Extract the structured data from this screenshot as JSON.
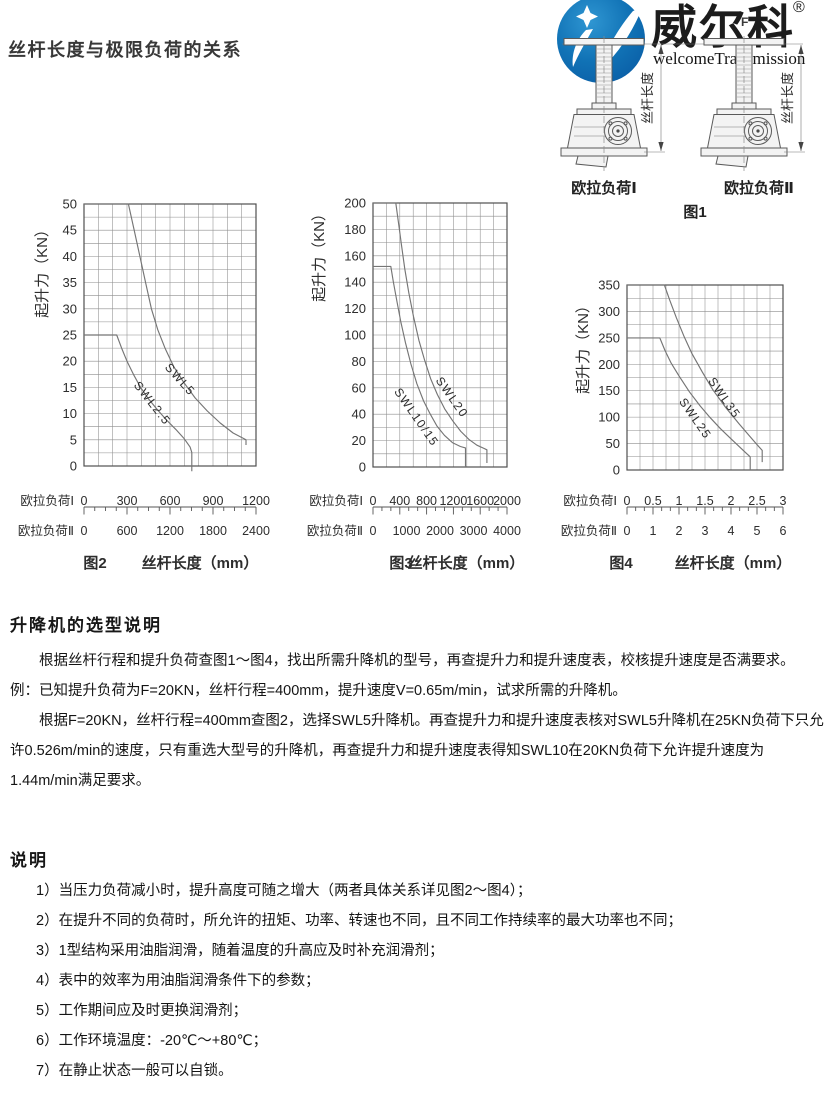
{
  "header": {
    "title": "丝杆长度与极限负荷的关系"
  },
  "logo": {
    "brand": "威尔科",
    "reg": "®",
    "small_f": "F",
    "subtitle": "welcomeTransmission",
    "blue": "#0d6cb5"
  },
  "fig1": {
    "caption": "图1",
    "dim_label": "丝杆长度",
    "label_left": "欧拉负荷Ⅰ",
    "label_right": "欧拉负荷Ⅱ"
  },
  "chart_data": [
    {
      "id": "fig2",
      "type": "line",
      "caption": "图2",
      "xlabel": "丝杆长度（mm）",
      "ylabel": "起升力（KN）",
      "ylim": [
        0,
        50
      ],
      "y_ticks": [
        "0",
        "5",
        "10",
        "15",
        "20",
        "25",
        "30",
        "35",
        "40",
        "45",
        "50"
      ],
      "xlim": [
        0,
        1200
      ],
      "grid": {
        "rows": 20,
        "cols": 12
      },
      "ruler": {
        "divs": 16,
        "major_every": 4
      },
      "x_axes": [
        {
          "label": "欧拉负荷Ⅰ",
          "ticks": [
            "0",
            "300",
            "600",
            "900",
            "1200"
          ]
        },
        {
          "label": "欧拉负荷Ⅱ",
          "ticks": [
            "0",
            "600",
            "1200",
            "1800",
            "2400"
          ]
        }
      ],
      "series": [
        {
          "name": "SWL5",
          "label_at": [
            650,
            16
          ],
          "label_angle": 48,
          "points": [
            [
              0,
              50
            ],
            [
              310,
              50
            ],
            [
              350,
              45
            ],
            [
              390,
              40
            ],
            [
              430,
              35
            ],
            [
              470,
              30
            ],
            [
              515,
              26
            ],
            [
              565,
              22.5
            ],
            [
              625,
              19
            ],
            [
              695,
              16
            ],
            [
              775,
              13
            ],
            [
              860,
              10.5
            ],
            [
              950,
              8.2
            ],
            [
              1040,
              6.3
            ],
            [
              1130,
              5
            ],
            [
              1130,
              4
            ]
          ]
        },
        {
          "name": "SWL2.5",
          "label_at": [
            455,
            11.5
          ],
          "label_angle": 52,
          "points": [
            [
              0,
              25
            ],
            [
              228,
              25
            ],
            [
              262,
              22.5
            ],
            [
              300,
              20
            ],
            [
              345,
              17.5
            ],
            [
              395,
              15
            ],
            [
              450,
              12.8
            ],
            [
              510,
              10.8
            ],
            [
              575,
              8.8
            ],
            [
              640,
              7
            ],
            [
              700,
              5.2
            ],
            [
              740,
              3.6
            ],
            [
              752,
              2.6
            ],
            [
              752,
              -1
            ]
          ]
        }
      ]
    },
    {
      "id": "fig3",
      "type": "line",
      "caption": "图3",
      "xlabel": "丝杆长度（mm）",
      "ylabel": "起升力（KN）",
      "ylim": [
        0,
        200
      ],
      "y_ticks": [
        "0",
        "20",
        "40",
        "60",
        "80",
        "100",
        "120",
        "140",
        "160",
        "180",
        "200"
      ],
      "xlim": [
        0,
        2000
      ],
      "grid": {
        "rows": 20,
        "cols": 10
      },
      "ruler": {
        "divs": 15,
        "major_every": 3
      },
      "x_axes": [
        {
          "label": "欧拉负荷Ⅰ",
          "ticks": [
            "0",
            "400",
            "800",
            "1200",
            "1600",
            "2000"
          ]
        },
        {
          "label": "欧拉负荷Ⅱ",
          "ticks": [
            "0",
            "1000",
            "2000",
            "3000",
            "4000"
          ]
        }
      ],
      "series": [
        {
          "name": "SWL20",
          "label_at": [
            1130,
            51
          ],
          "label_angle": 55,
          "points": [
            [
              0,
              200
            ],
            [
              340,
              200
            ],
            [
              380,
              185
            ],
            [
              425,
              168
            ],
            [
              475,
              150
            ],
            [
              535,
              132
            ],
            [
              605,
              114
            ],
            [
              685,
              96
            ],
            [
              770,
              81
            ],
            [
              860,
              67
            ],
            [
              960,
              55
            ],
            [
              1070,
              44
            ],
            [
              1190,
              35
            ],
            [
              1310,
              27
            ],
            [
              1430,
              21
            ],
            [
              1550,
              16.5
            ],
            [
              1660,
              14
            ],
            [
              1700,
              13
            ],
            [
              1700,
              3
            ]
          ]
        },
        {
          "name": "SWL10/15",
          "label_at": [
            600,
            36
          ],
          "label_angle": 55,
          "points": [
            [
              0,
              152
            ],
            [
              265,
              152
            ],
            [
              305,
              140
            ],
            [
              355,
              126
            ],
            [
              415,
              110
            ],
            [
              485,
              94
            ],
            [
              565,
              78
            ],
            [
              655,
              63
            ],
            [
              755,
              50
            ],
            [
              855,
              40
            ],
            [
              955,
              31
            ],
            [
              1065,
              24
            ],
            [
              1185,
              18.5
            ],
            [
              1305,
              15.5
            ],
            [
              1380,
              14.5
            ],
            [
              1380,
              0
            ]
          ]
        }
      ]
    },
    {
      "id": "fig4",
      "type": "line",
      "caption": "图4",
      "xlabel": "丝杆长度（mm）",
      "ylabel": "起升力（KN）",
      "ylim": [
        0,
        350
      ],
      "y_ticks": [
        "0",
        "50",
        "100",
        "150",
        "200",
        "250",
        "300",
        "350"
      ],
      "xlim": [
        0,
        3
      ],
      "grid": {
        "rows": 14,
        "cols": 12
      },
      "ruler": {
        "divs": 18,
        "major_every": 3
      },
      "x_axes": [
        {
          "label": "欧拉负荷Ⅰ",
          "ticks": [
            "0",
            "0.5",
            "1",
            "1.5",
            "2",
            "2.5",
            "3"
          ]
        },
        {
          "label": "欧拉负荷Ⅱ",
          "ticks": [
            "0",
            "1",
            "2",
            "3",
            "4",
            "5",
            "6"
          ]
        }
      ],
      "series": [
        {
          "name": "SWL35",
          "label_at": [
            1.81,
            132
          ],
          "label_angle": 55,
          "points": [
            [
              0,
              350
            ],
            [
              0.72,
              350
            ],
            [
              0.82,
              322
            ],
            [
              0.95,
              288
            ],
            [
              1.1,
              252
            ],
            [
              1.25,
              220
            ],
            [
              1.45,
              185
            ],
            [
              1.65,
              152
            ],
            [
              1.9,
              118
            ],
            [
              2.15,
              88
            ],
            [
              2.35,
              65
            ],
            [
              2.5,
              48
            ],
            [
              2.6,
              37
            ],
            [
              2.6,
              15
            ]
          ]
        },
        {
          "name": "SWL25",
          "label_at": [
            1.25,
            93
          ],
          "label_angle": 55,
          "points": [
            [
              0,
              250
            ],
            [
              0.63,
              250
            ],
            [
              0.73,
              226
            ],
            [
              0.85,
              202
            ],
            [
              1.0,
              178
            ],
            [
              1.2,
              148
            ],
            [
              1.4,
              122
            ],
            [
              1.6,
              99
            ],
            [
              1.8,
              78
            ],
            [
              2.0,
              59
            ],
            [
              2.15,
              45
            ],
            [
              2.3,
              31
            ],
            [
              2.37,
              25
            ],
            [
              2.37,
              0
            ]
          ]
        }
      ]
    }
  ],
  "selection": {
    "heading": "升降机的选型说明",
    "p1": "根据丝杆行程和提升负荷查图1～图4，找出所需升降机的型号，再查提升力和提升速度表，校核提升速度是否满要求。",
    "p2": "例：已知提升负荷为F=20KN，丝杆行程=400mm，提升速度V=0.65m/min，试求所需的升降机。",
    "p3": "根据F=20KN，丝杆行程=400mm查图2，选择SWL5升降机。再查提升力和提升速度表核对SWL5升降机在25KN负荷下只允许0.526m/min的速度，只有重选大型号的升降机，再查提升力和提升速度表得知SWL10在20KN负荷下允许提升速度为1.44m/min满足要求。"
  },
  "notes": {
    "heading": "说明",
    "items": [
      "1）当压力负荷减小时，提升高度可随之增大（两者具体关系详见图2～图4）；",
      "2）在提升不同的负荷时，所允许的扭矩、功率、转速也不同，且不同工作持续率的最大功率也不同；",
      "3）1型结构采用油脂润滑，随着温度的升高应及时补充润滑剂；",
      "4）表中的效率为用油脂润滑条件下的参数；",
      "5）工作期间应及时更换润滑剂；",
      "6）工作环境温度：-20℃～+80℃；",
      "7）在静止状态一般可以自锁。"
    ]
  }
}
